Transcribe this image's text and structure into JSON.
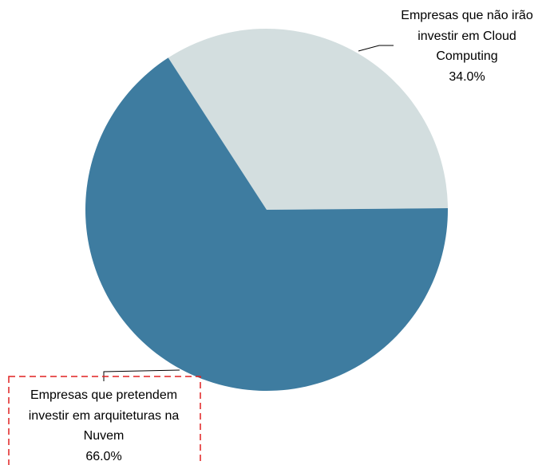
{
  "chart_data": {
    "type": "pie",
    "categories": [
      "Empresas que pretendem investir em arquiteturas na Nuvem",
      "Empresas que não irão investir em Cloud Computing"
    ],
    "values": [
      66.0,
      34.0
    ],
    "value_labels": [
      "66.0%",
      "34.0%"
    ],
    "colors": [
      "#3e7ca0",
      "#d3dedf"
    ]
  }
}
